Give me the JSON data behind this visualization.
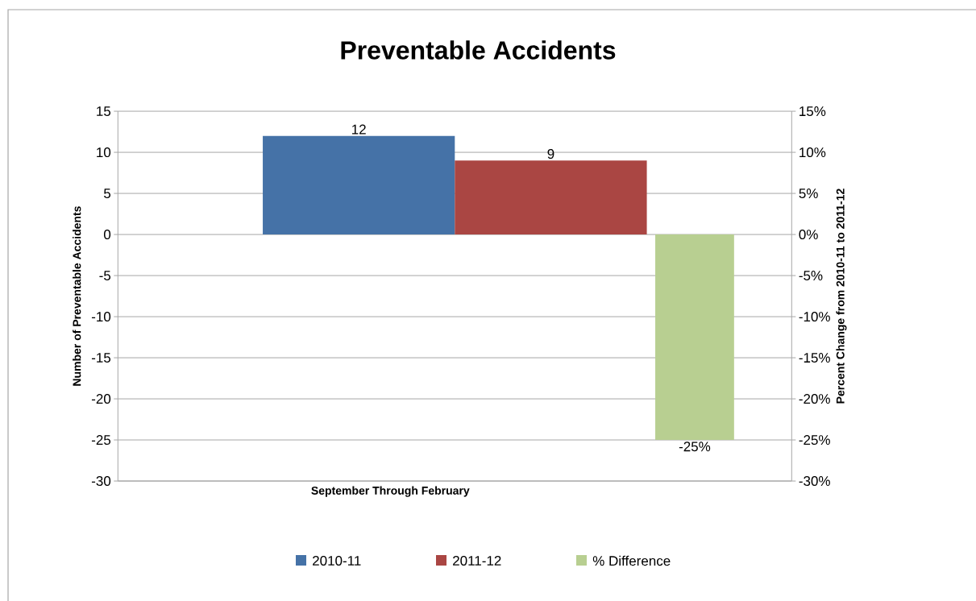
{
  "chart_data": {
    "type": "bar",
    "title": "Preventable Accidents",
    "xlabel": "September Through February",
    "ylabel": "Number of Preventable Accidents",
    "y2label": "Percent Change from 2010-11 to 2011-12",
    "categories": [
      null
    ],
    "series": [
      {
        "name": "2010-11",
        "color": "#4572a7",
        "values": [
          12
        ],
        "value_labels": [
          "12"
        ]
      },
      {
        "name": "2011-12",
        "color": "#aa4643",
        "values": [
          9
        ],
        "value_labels": [
          "9"
        ]
      },
      {
        "name": "% Difference",
        "color": "#b8cf91",
        "values": [
          -25
        ],
        "value_labels": [
          "-25%"
        ],
        "axis": "y2"
      }
    ],
    "ylim": [
      -30,
      15
    ],
    "yticks": [
      -30,
      -25,
      -20,
      -15,
      -10,
      -5,
      0,
      5,
      10,
      15
    ],
    "y2lim": [
      -30,
      15
    ],
    "y2ticks": [
      {
        "value": -30,
        "label": "-30%"
      },
      {
        "value": -25,
        "label": "-25%"
      },
      {
        "value": -20,
        "label": "-20%"
      },
      {
        "value": -15,
        "label": "-15%"
      },
      {
        "value": -10,
        "label": "-10%"
      },
      {
        "value": -5,
        "label": "-5%"
      },
      {
        "value": 0,
        "label": "0%"
      },
      {
        "value": 5,
        "label": "5%"
      },
      {
        "value": 10,
        "label": "10%"
      },
      {
        "value": 15,
        "label": "15%"
      }
    ],
    "grid": "y",
    "legend": "bottom"
  }
}
